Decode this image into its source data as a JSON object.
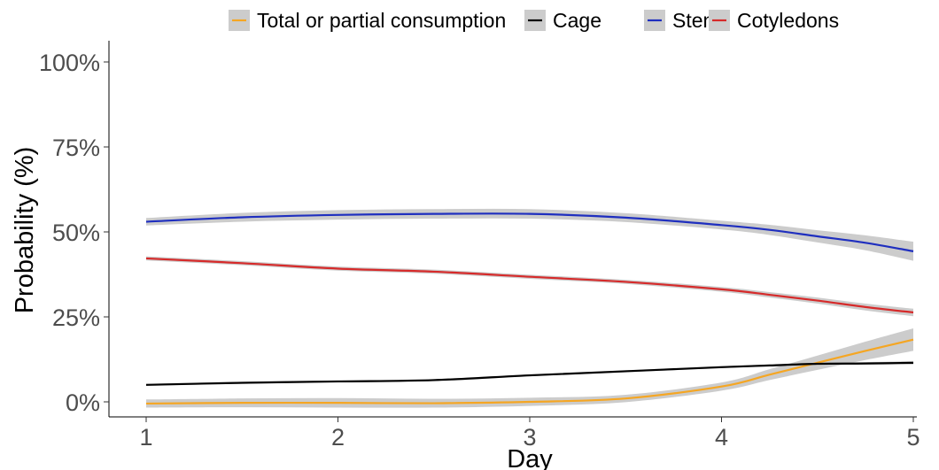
{
  "chart_data": {
    "type": "line",
    "xlabel": "Day",
    "ylabel": "Probability (%)",
    "xlim": [
      1,
      5
    ],
    "ylim": [
      0,
      100
    ],
    "x_ticks": [
      1,
      2,
      3,
      4,
      5
    ],
    "y_ticks": [
      0,
      25,
      50,
      75,
      100
    ],
    "y_tick_labels": [
      "0%",
      "25%",
      "50%",
      "75%",
      "100%"
    ],
    "grid": false,
    "legend_position": "top",
    "confidence_band_color": "#cccccc",
    "x": [
      1,
      1.5,
      2,
      2.5,
      3,
      3.5,
      4,
      4.25,
      4.5,
      4.75,
      5
    ],
    "series": [
      {
        "name": "Total or partial consumption",
        "color": "#f5a623",
        "values": [
          -0.5,
          -0.3,
          -0.3,
          -0.4,
          0.0,
          1.0,
          4.5,
          8.0,
          11.5,
          15.0,
          18.3
        ],
        "band": [
          1.2,
          1.3,
          1.4,
          1.3,
          1.2,
          1.1,
          1.2,
          1.6,
          2.1,
          2.7,
          3.3
        ]
      },
      {
        "name": "Cage",
        "color": "#000000",
        "values": [
          5.0,
          5.6,
          6.0,
          6.4,
          7.8,
          9.0,
          10.2,
          10.7,
          11.2,
          11.3,
          11.5
        ],
        "band": [
          0.3,
          0.3,
          0.3,
          0.3,
          0.3,
          0.3,
          0.3,
          0.3,
          0.4,
          0.4,
          0.5
        ]
      },
      {
        "name": "Stem",
        "color": "#1f2fbf",
        "values": [
          53.0,
          54.3,
          55.0,
          55.3,
          55.3,
          54.2,
          52.0,
          50.6,
          48.7,
          46.8,
          44.3
        ],
        "band": [
          1.1,
          1.3,
          1.4,
          1.4,
          1.4,
          1.3,
          1.3,
          1.5,
          1.8,
          2.2,
          2.8
        ]
      },
      {
        "name": "Cotyledons",
        "color": "#d62a2a",
        "values": [
          42.2,
          40.8,
          39.2,
          38.3,
          36.8,
          35.3,
          33.1,
          31.5,
          29.8,
          27.9,
          26.3
        ],
        "band": [
          0.6,
          0.6,
          0.6,
          0.6,
          0.6,
          0.6,
          0.7,
          0.8,
          0.9,
          1.0,
          1.1
        ]
      }
    ]
  }
}
